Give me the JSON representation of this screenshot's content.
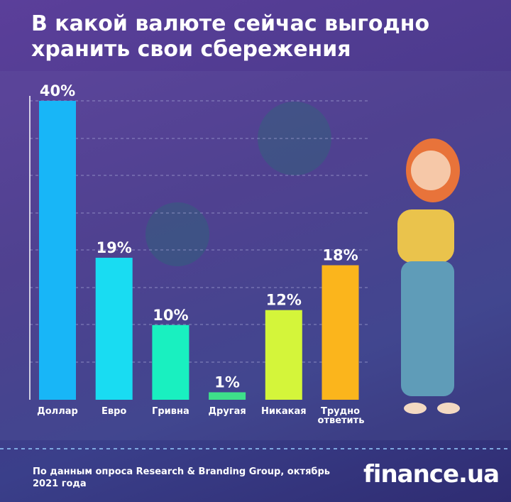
{
  "chart_data": {
    "type": "bar",
    "title": "В какой валюте сейчас выгодно хранить свои сбережения",
    "categories": [
      "Доллар",
      "Евро",
      "Гривна",
      "Другая",
      "Никакая",
      "Трудно ответить"
    ],
    "values": [
      40,
      19,
      10,
      1,
      12,
      18
    ],
    "value_labels": [
      "40%",
      "19%",
      "10%",
      "1%",
      "12%",
      "18%"
    ],
    "colors": [
      "#18b6f7",
      "#19dcf2",
      "#19f0c0",
      "#3ee08a",
      "#d4f53a",
      "#fbb51c"
    ],
    "ylim": [
      0,
      40
    ]
  },
  "source": "По данным опроса Research & Branding Group, октябрь 2021 года",
  "logo": "finance.ua"
}
